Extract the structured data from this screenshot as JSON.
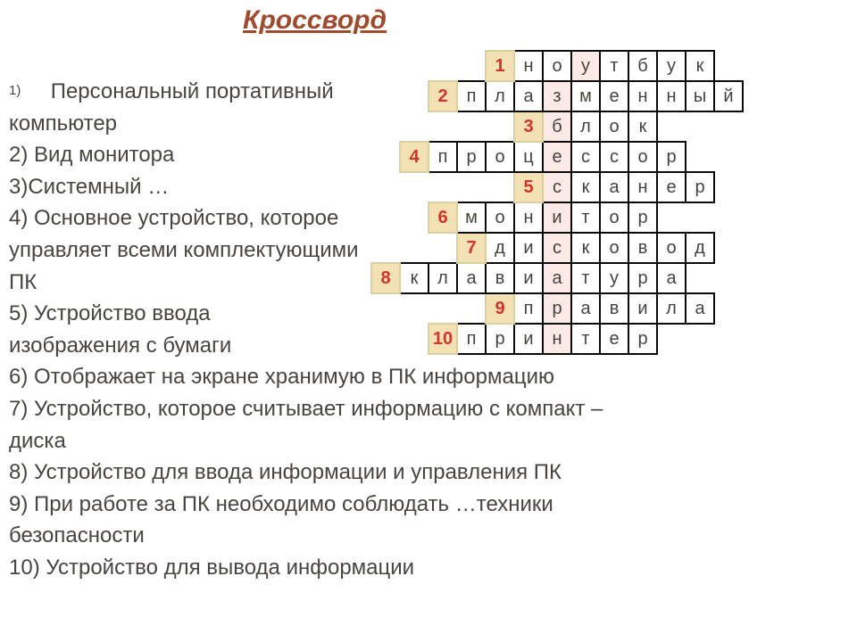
{
  "title": "Кроссворд",
  "colors": {
    "title": "#a14b2e",
    "text": "#484440",
    "cell_border": "#0a0a0a",
    "cell_bg": "#ffffff",
    "cell_highlight": "#fde9e5",
    "num_bg": "#f3e1b3",
    "num_border": "#d9cfa3",
    "num_text": "#d0342c",
    "page_bg": "#ffffff"
  },
  "clues": {
    "line1a": "Персональный портативный",
    "line1b": "компьютер",
    "line2": "2) Вид монитора",
    "line3": "3)Системный …",
    "line4a": "4) Основное устройство, которое",
    "line4b": "управляет всеми комплектующими",
    "line4c": "ПК",
    "line5a": "5) Устройство ввода",
    "line5b": "изображения с бумаги",
    "line6": "6) Отображает на экране хранимую в ПК информацию",
    "line7a": "7) Устройство, которое считывает информацию с компакт –",
    "line7b": "диска",
    "line8": "8) Устройство для ввода информации и управления ПК",
    "line9a": "9) При работе за ПК необходимо соблюдать …техники",
    "line9b": "безопасности",
    "line10": "10) Устройство для вывода информации",
    "first_num": "1)"
  },
  "grid": {
    "cell_size": 32,
    "rows": [
      {
        "num": "1",
        "blanks_before": 4,
        "letters": [
          "н",
          "о",
          "у",
          "т",
          "б",
          "у",
          "к"
        ],
        "hl_index": 2
      },
      {
        "num": "2",
        "blanks_before": 2,
        "letters": [
          "п",
          "л",
          "а",
          "з",
          "м",
          "е",
          "н",
          "н",
          "ы",
          "й"
        ],
        "hl_index": 3
      },
      {
        "num": "3",
        "blanks_before": 5,
        "letters": [
          "б",
          "л",
          "о",
          "к"
        ],
        "hl_index": 0
      },
      {
        "num": "4",
        "blanks_before": 1,
        "letters": [
          "п",
          "р",
          "о",
          "ц",
          "е",
          "с",
          "с",
          "о",
          "р"
        ],
        "hl_index": 4
      },
      {
        "num": "5",
        "blanks_before": 5,
        "letters": [
          "с",
          "к",
          "а",
          "н",
          "е",
          "р"
        ],
        "hl_index": 0
      },
      {
        "num": "6",
        "blanks_before": 2,
        "letters": [
          "м",
          "о",
          "н",
          "и",
          "т",
          "о",
          "р"
        ],
        "hl_index": 3
      },
      {
        "num": "7",
        "blanks_before": 3,
        "letters": [
          "д",
          "и",
          "с",
          "к",
          "о",
          "в",
          "о",
          "д"
        ],
        "hl_index": 2
      },
      {
        "num": "8",
        "blanks_before": 0,
        "letters": [
          "к",
          "л",
          "а",
          "в",
          "и",
          "а",
          "т",
          "у",
          "р",
          "а"
        ],
        "hl_index": 5
      },
      {
        "num": "9",
        "blanks_before": 4,
        "letters": [
          "п",
          "р",
          "а",
          "в",
          "и",
          "л",
          "а"
        ],
        "hl_index": 1
      },
      {
        "num": "10",
        "blanks_before": 2,
        "letters": [
          "п",
          "р",
          "и",
          "н",
          "т",
          "е",
          "р"
        ],
        "hl_index": 3
      }
    ]
  }
}
